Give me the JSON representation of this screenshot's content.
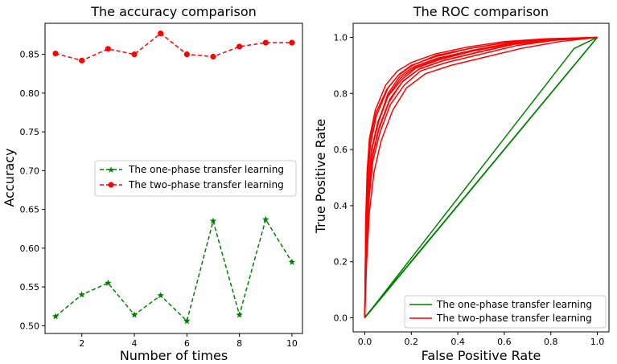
{
  "chart_data": [
    {
      "type": "line",
      "title": "The accuracy comparison",
      "xlabel": "Number of times",
      "ylabel": "Accuracy",
      "x": [
        1,
        2,
        3,
        4,
        5,
        6,
        7,
        8,
        9,
        10
      ],
      "xlim": [
        0.6,
        10.4
      ],
      "ylim": [
        0.49,
        0.89
      ],
      "xticks": [
        2,
        4,
        6,
        8,
        10
      ],
      "xtick_labels": [
        "2",
        "4",
        "6",
        "8",
        "10"
      ],
      "yticks": [
        0.5,
        0.55,
        0.6,
        0.65,
        0.7,
        0.75,
        0.8,
        0.85
      ],
      "ytick_labels": [
        "0.50",
        "0.55",
        "0.60",
        "0.65",
        "0.70",
        "0.75",
        "0.80",
        "0.85"
      ],
      "legend_position": "center-right",
      "series": [
        {
          "name": "The one-phase transfer learning",
          "color": "#008000",
          "marker": "star",
          "linestyle": "dashed",
          "values": [
            0.512,
            0.54,
            0.555,
            0.514,
            0.539,
            0.506,
            0.635,
            0.514,
            0.637,
            0.582
          ]
        },
        {
          "name": "The two-phase transfer learning",
          "color": "#ff0000",
          "marker": "circle",
          "linestyle": "dashed",
          "values": [
            0.851,
            0.842,
            0.857,
            0.85,
            0.877,
            0.85,
            0.847,
            0.86,
            0.865,
            0.865
          ]
        }
      ]
    },
    {
      "type": "line",
      "title": "The ROC comparison",
      "xlabel": "False Positive Rate",
      "ylabel": "True Positive Rate",
      "xlim": [
        -0.05,
        1.05
      ],
      "ylim": [
        -0.05,
        1.05
      ],
      "xticks": [
        0,
        0.2,
        0.4,
        0.6,
        0.8,
        1
      ],
      "xtick_labels": [
        "0.0",
        "0.2",
        "0.4",
        "0.6",
        "0.8",
        "1.0"
      ],
      "yticks": [
        0,
        0.2,
        0.4,
        0.6,
        0.8,
        1
      ],
      "ytick_labels": [
        "0.0",
        "0.2",
        "0.4",
        "0.6",
        "0.8",
        "1.0"
      ],
      "legend_position": "lower-right",
      "series": [
        {
          "name": "The one-phase transfer learning",
          "color": "#008000",
          "curves": [
            [
              [
                0,
                0
              ],
              [
                1,
                1
              ]
            ],
            [
              [
                0,
                0
              ],
              [
                0.002,
                0.004
              ],
              [
                1,
                1
              ]
            ],
            [
              [
                0,
                0
              ],
              [
                0.005,
                0.005
              ],
              [
                1,
                1
              ]
            ],
            [
              [
                0,
                0
              ],
              [
                0.9,
                0.96
              ],
              [
                1,
                1
              ]
            ]
          ]
        },
        {
          "name": "The two-phase transfer learning",
          "color": "#ff0000",
          "curves": [
            [
              [
                0,
                0
              ],
              [
                0.005,
                0.32
              ],
              [
                0.012,
                0.5
              ],
              [
                0.025,
                0.62
              ],
              [
                0.05,
                0.72
              ],
              [
                0.1,
                0.82
              ],
              [
                0.15,
                0.87
              ],
              [
                0.2,
                0.9
              ],
              [
                0.3,
                0.93
              ],
              [
                0.45,
                0.96
              ],
              [
                0.6,
                0.98
              ],
              [
                0.8,
                0.99
              ],
              [
                1,
                1
              ]
            ],
            [
              [
                0,
                0
              ],
              [
                0.006,
                0.3
              ],
              [
                0.015,
                0.48
              ],
              [
                0.03,
                0.6
              ],
              [
                0.06,
                0.7
              ],
              [
                0.1,
                0.79
              ],
              [
                0.16,
                0.85
              ],
              [
                0.22,
                0.89
              ],
              [
                0.32,
                0.92
              ],
              [
                0.46,
                0.95
              ],
              [
                0.62,
                0.975
              ],
              [
                0.8,
                0.99
              ],
              [
                1,
                1
              ]
            ],
            [
              [
                0,
                0
              ],
              [
                0.007,
                0.25
              ],
              [
                0.018,
                0.42
              ],
              [
                0.035,
                0.56
              ],
              [
                0.065,
                0.66
              ],
              [
                0.11,
                0.76
              ],
              [
                0.17,
                0.83
              ],
              [
                0.24,
                0.88
              ],
              [
                0.35,
                0.91
              ],
              [
                0.5,
                0.94
              ],
              [
                0.65,
                0.97
              ],
              [
                0.82,
                0.99
              ],
              [
                1,
                1
              ]
            ],
            [
              [
                0,
                0
              ],
              [
                0.004,
                0.35
              ],
              [
                0.01,
                0.52
              ],
              [
                0.02,
                0.64
              ],
              [
                0.045,
                0.74
              ],
              [
                0.09,
                0.83
              ],
              [
                0.14,
                0.88
              ],
              [
                0.2,
                0.91
              ],
              [
                0.3,
                0.94
              ],
              [
                0.44,
                0.965
              ],
              [
                0.6,
                0.985
              ],
              [
                0.78,
                0.995
              ],
              [
                1,
                1
              ]
            ],
            [
              [
                0,
                0
              ],
              [
                0.008,
                0.2
              ],
              [
                0.02,
                0.38
              ],
              [
                0.04,
                0.52
              ],
              [
                0.07,
                0.63
              ],
              [
                0.12,
                0.74
              ],
              [
                0.18,
                0.82
              ],
              [
                0.26,
                0.87
              ],
              [
                0.37,
                0.9
              ],
              [
                0.52,
                0.93
              ],
              [
                0.67,
                0.96
              ],
              [
                0.84,
                0.985
              ],
              [
                1,
                1
              ]
            ],
            [
              [
                0,
                0
              ],
              [
                0.005,
                0.28
              ],
              [
                0.013,
                0.46
              ],
              [
                0.028,
                0.59
              ],
              [
                0.055,
                0.69
              ],
              [
                0.1,
                0.8
              ],
              [
                0.15,
                0.86
              ],
              [
                0.21,
                0.895
              ],
              [
                0.31,
                0.925
              ],
              [
                0.47,
                0.955
              ],
              [
                0.63,
                0.98
              ],
              [
                0.8,
                0.992
              ],
              [
                1,
                1
              ]
            ],
            [
              [
                0,
                0
              ],
              [
                0.006,
                0.24
              ],
              [
                0.016,
                0.44
              ],
              [
                0.032,
                0.57
              ],
              [
                0.06,
                0.67
              ],
              [
                0.105,
                0.77
              ],
              [
                0.16,
                0.84
              ],
              [
                0.23,
                0.885
              ],
              [
                0.33,
                0.915
              ],
              [
                0.48,
                0.945
              ],
              [
                0.64,
                0.975
              ],
              [
                0.81,
                0.99
              ],
              [
                1,
                1
              ]
            ],
            [
              [
                0,
                0
              ],
              [
                0.004,
                0.33
              ],
              [
                0.011,
                0.5
              ],
              [
                0.022,
                0.63
              ],
              [
                0.048,
                0.73
              ],
              [
                0.095,
                0.815
              ],
              [
                0.145,
                0.865
              ],
              [
                0.205,
                0.9
              ],
              [
                0.305,
                0.935
              ],
              [
                0.45,
                0.96
              ],
              [
                0.61,
                0.982
              ],
              [
                0.79,
                0.994
              ],
              [
                1,
                1
              ]
            ],
            [
              [
                0,
                0
              ],
              [
                0.007,
                0.27
              ],
              [
                0.017,
                0.45
              ],
              [
                0.033,
                0.58
              ],
              [
                0.062,
                0.68
              ],
              [
                0.108,
                0.78
              ],
              [
                0.165,
                0.845
              ],
              [
                0.235,
                0.888
              ],
              [
                0.34,
                0.918
              ],
              [
                0.49,
                0.948
              ],
              [
                0.645,
                0.976
              ],
              [
                0.815,
                0.99
              ],
              [
                1,
                1
              ]
            ],
            [
              [
                0,
                0
              ],
              [
                0.005,
                0.3
              ],
              [
                0.014,
                0.47
              ],
              [
                0.029,
                0.6
              ],
              [
                0.057,
                0.7
              ],
              [
                0.102,
                0.795
              ],
              [
                0.155,
                0.855
              ],
              [
                0.215,
                0.892
              ],
              [
                0.315,
                0.922
              ],
              [
                0.465,
                0.952
              ],
              [
                0.625,
                0.978
              ],
              [
                0.805,
                0.991
              ],
              [
                1,
                1
              ]
            ]
          ]
        }
      ]
    }
  ]
}
